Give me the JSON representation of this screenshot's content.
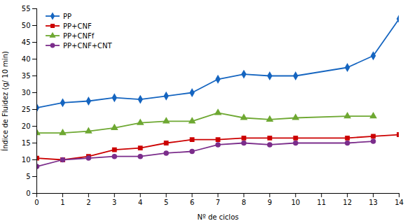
{
  "chart_data": {
    "type": "line",
    "xlabel": "Nº de ciclos",
    "ylabel": "Índice de Fluidez (g/ 10 min)",
    "x": [
      0,
      1,
      2,
      3,
      4,
      5,
      6,
      7,
      8,
      9,
      10,
      12,
      13,
      14
    ],
    "series": [
      {
        "name": "PP",
        "color": "#1565C0",
        "marker": "diamond",
        "values": [
          25.5,
          27,
          27.5,
          28.5,
          28,
          29,
          30,
          34,
          35.5,
          35,
          35,
          37.5,
          41,
          52
        ]
      },
      {
        "name": "PP+CNF",
        "color": "#CC0000",
        "marker": "square",
        "values": [
          10.5,
          10,
          11,
          13,
          13.5,
          15,
          16,
          16,
          16.5,
          16.5,
          16.5,
          16.5,
          17,
          17.5
        ]
      },
      {
        "name": "PP+CNFf",
        "color": "#6EA832",
        "marker": "triangle",
        "values": [
          18,
          18,
          18.5,
          19.5,
          21,
          21.5,
          21.5,
          24,
          22.5,
          22,
          22.5,
          23,
          23,
          null
        ]
      },
      {
        "name": "PP+CNF+CNT",
        "color": "#7B2D8B",
        "marker": "circle",
        "values": [
          8,
          10,
          10.5,
          11,
          11,
          12,
          12.5,
          14.5,
          15,
          14.5,
          15,
          15,
          15.5,
          null
        ]
      }
    ],
    "xlim": [
      0,
      14
    ],
    "xticks": [
      0,
      1,
      2,
      3,
      4,
      5,
      6,
      7,
      8,
      9,
      10,
      11,
      12,
      13,
      14
    ],
    "ylim": [
      0,
      55
    ],
    "yticks": [
      0,
      5,
      10,
      15,
      20,
      25,
      30,
      35,
      40,
      45,
      50,
      55
    ],
    "grid": false,
    "legend": "upper left"
  }
}
